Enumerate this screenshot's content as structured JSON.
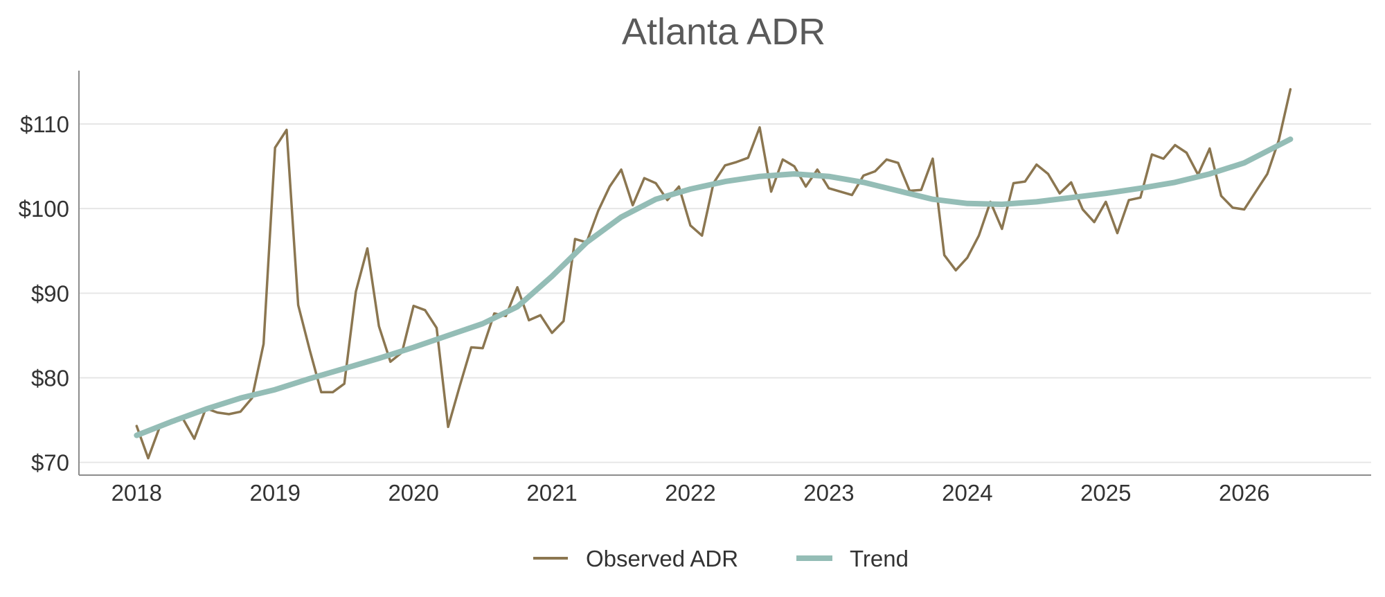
{
  "chart_data": {
    "type": "line",
    "title": "Atlanta ADR",
    "xlabel": "",
    "ylabel": "",
    "x_ticks": [
      "2018",
      "2019",
      "2020",
      "2021",
      "2022",
      "2023",
      "2024",
      "2025",
      "2026"
    ],
    "y_ticks": [
      70,
      80,
      90,
      100,
      110
    ],
    "y_tick_labels": [
      "$70",
      "$80",
      "$90",
      "$100",
      "$110"
    ],
    "xlim": [
      "2017-08",
      "2026-12"
    ],
    "ylim": [
      68.5,
      116.3
    ],
    "grid": "horizontal",
    "legend": "bottom-center",
    "colors": {
      "observed": "#8b7650",
      "trend": "#94bdb6",
      "axis": "#8c8c8c",
      "grid": "#e6e6e6"
    },
    "series": [
      {
        "name": "Observed ADR",
        "x": [
          "2018-01",
          "2018-02",
          "2018-03",
          "2018-04",
          "2018-05",
          "2018-06",
          "2018-07",
          "2018-08",
          "2018-09",
          "2018-10",
          "2018-11",
          "2018-12",
          "2019-01",
          "2019-02",
          "2019-03",
          "2019-04",
          "2019-05",
          "2019-06",
          "2019-07",
          "2019-08",
          "2019-09",
          "2019-10",
          "2019-11",
          "2019-12",
          "2020-01",
          "2020-02",
          "2020-03",
          "2020-04",
          "2020-05",
          "2020-06",
          "2020-07",
          "2020-08",
          "2020-09",
          "2020-10",
          "2020-11",
          "2020-12",
          "2021-01",
          "2021-02",
          "2021-03",
          "2021-04",
          "2021-05",
          "2021-06",
          "2021-07",
          "2021-08",
          "2021-09",
          "2021-10",
          "2021-11",
          "2021-12",
          "2022-01",
          "2022-02",
          "2022-03",
          "2022-04",
          "2022-05",
          "2022-06",
          "2022-07",
          "2022-08",
          "2022-09",
          "2022-10",
          "2022-11",
          "2022-12",
          "2023-01",
          "2023-02",
          "2023-03",
          "2023-04",
          "2023-05",
          "2023-06",
          "2023-07",
          "2023-08",
          "2023-09",
          "2023-10",
          "2023-11",
          "2023-12",
          "2024-01",
          "2024-02",
          "2024-03",
          "2024-04",
          "2024-05",
          "2024-06",
          "2024-07",
          "2024-08",
          "2024-09",
          "2024-10",
          "2024-11",
          "2024-12",
          "2025-01",
          "2025-02",
          "2025-03",
          "2025-04",
          "2025-05",
          "2025-06",
          "2025-07",
          "2025-08",
          "2025-09",
          "2025-10",
          "2025-11",
          "2025-12",
          "2026-01",
          "2026-02",
          "2026-03",
          "2026-04",
          "2026-05"
        ],
        "values": [
          74.3,
          70.5,
          74.2,
          75.0,
          75.2,
          72.8,
          76.4,
          75.9,
          75.7,
          76.0,
          77.6,
          84.0,
          107.2,
          109.3,
          88.6,
          83.3,
          78.3,
          78.3,
          79.3,
          90.2,
          95.3,
          86.1,
          81.9,
          83.0,
          88.5,
          88.0,
          85.9,
          74.2,
          79.0,
          83.6,
          83.5,
          87.6,
          87.3,
          90.7,
          86.8,
          87.4,
          85.3,
          86.7,
          96.4,
          96.0,
          99.7,
          102.6,
          104.6,
          100.4,
          103.6,
          103.0,
          101.0,
          102.6,
          98.0,
          96.8,
          103.0,
          105.1,
          105.5,
          106.0,
          109.6,
          102.0,
          105.8,
          105.0,
          102.6,
          104.6,
          102.4,
          102.0,
          101.6,
          103.9,
          104.4,
          105.8,
          105.4,
          102.1,
          102.2,
          105.9,
          94.5,
          92.7,
          94.2,
          96.8,
          100.8,
          97.6,
          103.0,
          103.2,
          105.2,
          104.1,
          101.8,
          103.1,
          99.9,
          98.4,
          100.8,
          97.1,
          101.0,
          101.3,
          106.4,
          105.9,
          107.5,
          106.6,
          104.0,
          107.1,
          101.5,
          100.1,
          99.9,
          102.0,
          104.1,
          108.1,
          114.1
        ]
      },
      {
        "name": "Trend",
        "x": [
          "2018-01",
          "2018-04",
          "2018-07",
          "2018-10",
          "2019-01",
          "2019-04",
          "2019-07",
          "2019-10",
          "2020-01",
          "2020-04",
          "2020-07",
          "2020-10",
          "2021-01",
          "2021-04",
          "2021-07",
          "2021-10",
          "2022-01",
          "2022-04",
          "2022-07",
          "2022-10",
          "2023-01",
          "2023-04",
          "2023-07",
          "2023-10",
          "2024-01",
          "2024-04",
          "2024-07",
          "2024-10",
          "2025-01",
          "2025-04",
          "2025-07",
          "2025-10",
          "2026-01",
          "2026-05"
        ],
        "values": [
          73.2,
          74.8,
          76.3,
          77.6,
          78.6,
          79.9,
          81.1,
          82.3,
          83.6,
          85.0,
          86.4,
          88.4,
          92.0,
          96.0,
          99.0,
          101.1,
          102.3,
          103.2,
          103.8,
          104.1,
          103.8,
          103.1,
          102.1,
          101.1,
          100.6,
          100.5,
          100.8,
          101.3,
          101.8,
          102.4,
          103.1,
          104.1,
          105.4,
          108.2
        ]
      }
    ]
  }
}
